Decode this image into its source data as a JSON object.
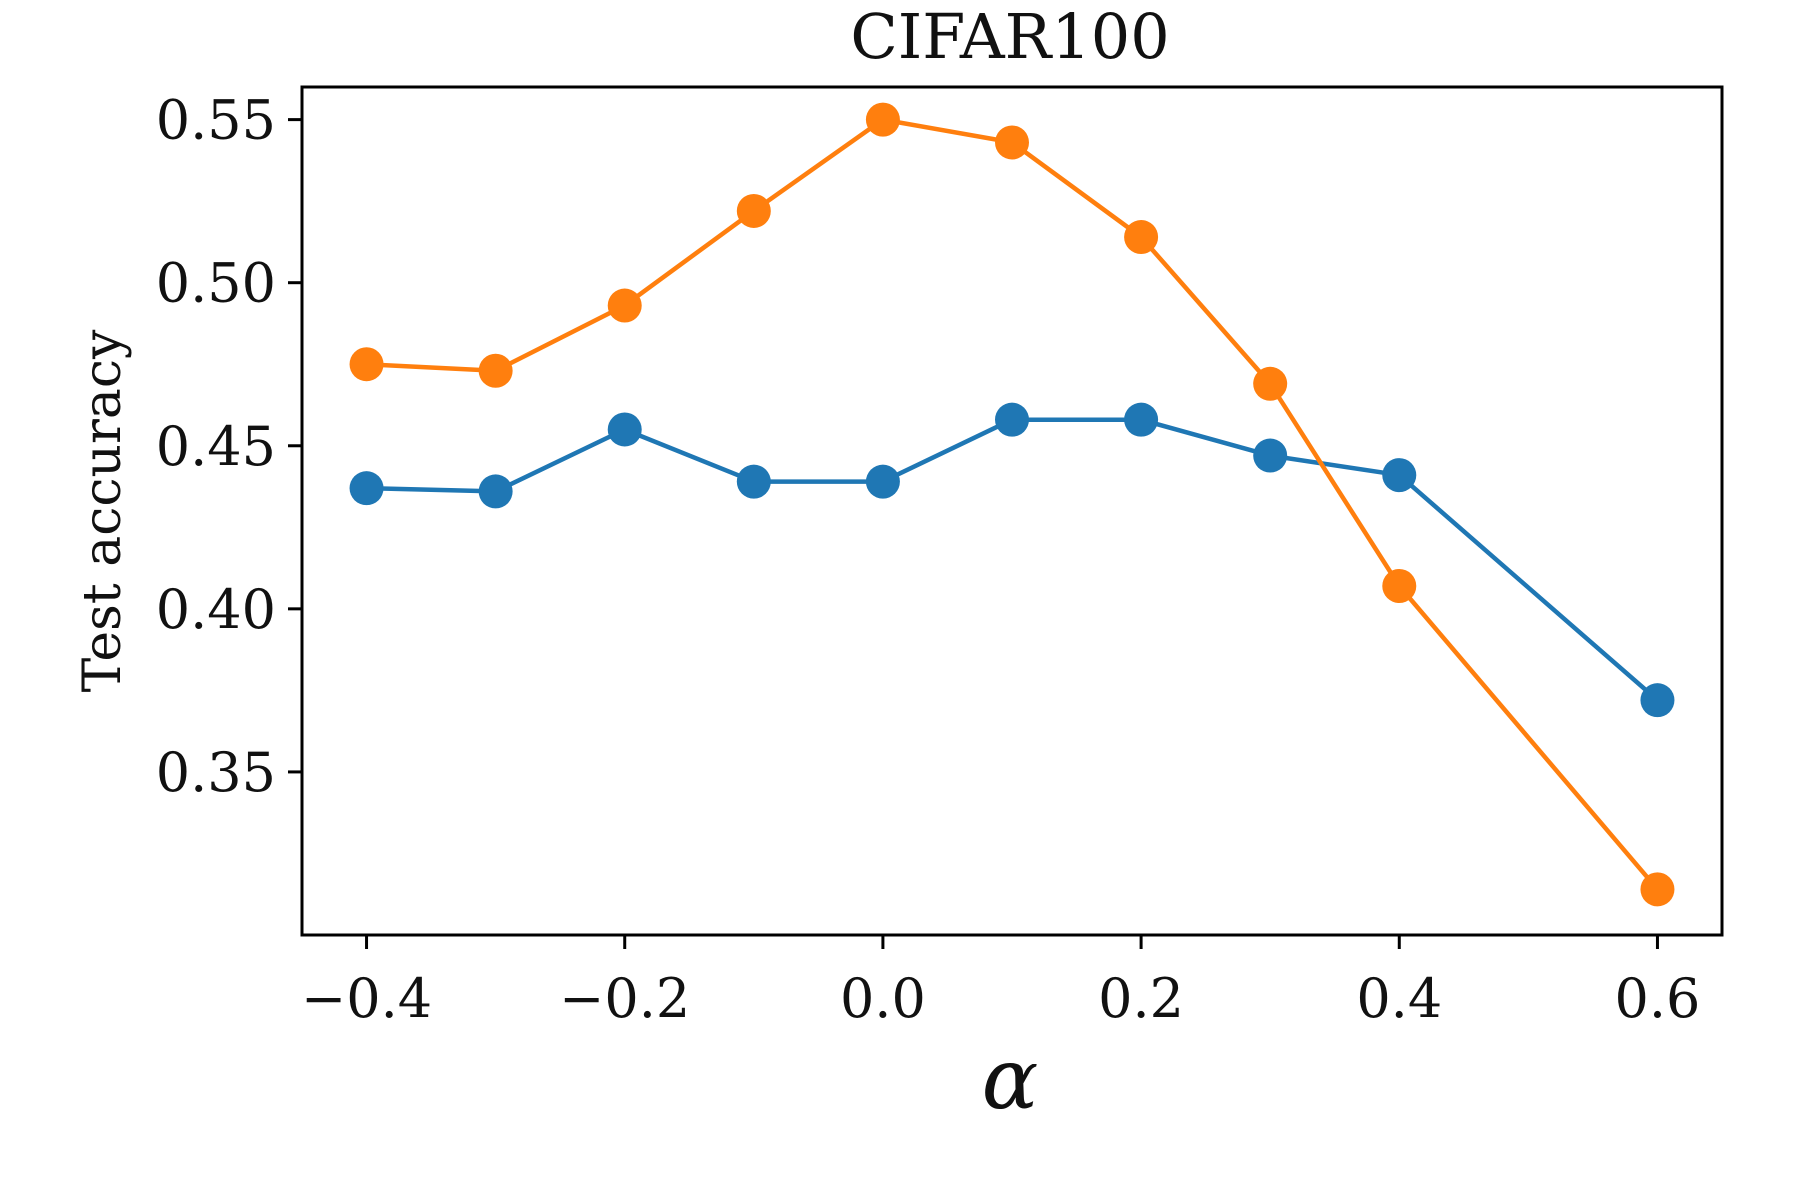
{
  "chart_data": {
    "type": "line",
    "title": "CIFAR100",
    "xlabel": "α",
    "ylabel": "Test accuracy",
    "xlim": [
      -0.45,
      0.65
    ],
    "ylim": [
      0.3,
      0.56
    ],
    "grid": false,
    "x_ticks": [
      -0.4,
      -0.2,
      0.0,
      0.2,
      0.4,
      0.6
    ],
    "x_tick_labels": [
      "−0.4",
      "−0.2",
      "0.0",
      "0.2",
      "0.4",
      "0.6"
    ],
    "y_ticks": [
      0.35,
      0.4,
      0.45,
      0.5,
      0.55
    ],
    "y_tick_labels": [
      "0.35",
      "0.40",
      "0.45",
      "0.50",
      "0.55"
    ],
    "x": [
      -0.4,
      -0.3,
      -0.2,
      -0.1,
      0.0,
      0.1,
      0.2,
      0.3,
      0.4,
      0.6
    ],
    "series": [
      {
        "color": "#1f77b4",
        "values": [
          0.437,
          0.436,
          0.455,
          0.439,
          0.439,
          0.458,
          0.458,
          0.447,
          0.441,
          0.372
        ]
      },
      {
        "color": "#ff7f0e",
        "values": [
          0.475,
          0.473,
          0.493,
          0.522,
          0.55,
          0.543,
          0.514,
          0.469,
          0.407,
          0.314
        ]
      }
    ]
  }
}
